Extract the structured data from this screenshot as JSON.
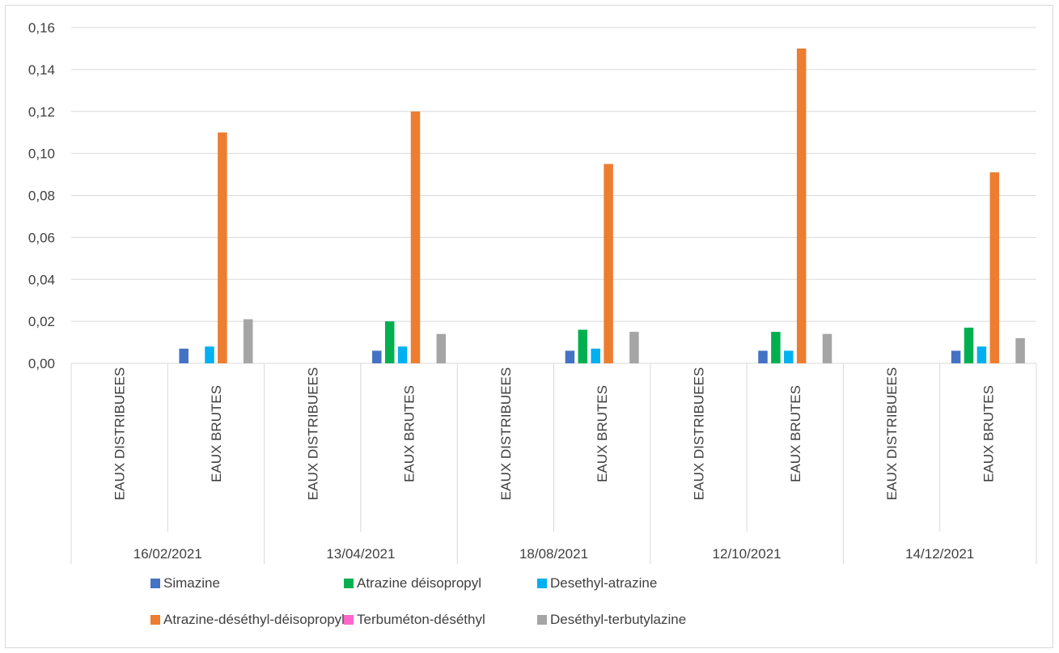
{
  "chart_data": {
    "type": "bar",
    "ylim": [
      0,
      0.16
    ],
    "y_ticks": [
      "0,00",
      "0,02",
      "0,04",
      "0,06",
      "0,08",
      "0,10",
      "0,12",
      "0,14",
      "0,16"
    ],
    "grid": true,
    "legend_position": "bottom",
    "groups": [
      {
        "date": "16/02/2021",
        "categories": [
          "EAUX DISTRIBUEES",
          "EAUX BRUTES"
        ]
      },
      {
        "date": "13/04/2021",
        "categories": [
          "EAUX DISTRIBUEES",
          "EAUX BRUTES"
        ]
      },
      {
        "date": "18/08/2021",
        "categories": [
          "EAUX DISTRIBUEES",
          "EAUX BRUTES"
        ]
      },
      {
        "date": "12/10/2021",
        "categories": [
          "EAUX DISTRIBUEES",
          "EAUX BRUTES"
        ]
      },
      {
        "date": "14/12/2021",
        "categories": [
          "EAUX DISTRIBUEES",
          "EAUX BRUTES"
        ]
      }
    ],
    "series": [
      {
        "name": "Simazine",
        "color": "#4472c4",
        "values": [
          null,
          0.007,
          null,
          0.006,
          null,
          0.006,
          null,
          0.006,
          null,
          0.006
        ]
      },
      {
        "name": "Atrazine déisopropyl",
        "color": "#00b050",
        "values": [
          null,
          null,
          null,
          0.02,
          null,
          0.016,
          null,
          0.015,
          null,
          0.017
        ]
      },
      {
        "name": "Desethyl-atrazine",
        "color": "#00b0f0",
        "values": [
          null,
          0.008,
          null,
          0.008,
          null,
          0.007,
          null,
          0.006,
          null,
          0.008
        ]
      },
      {
        "name": "Atrazine-déséthyl-déisopropyl",
        "color": "#ed7d31",
        "values": [
          null,
          0.11,
          null,
          0.12,
          null,
          0.095,
          null,
          0.15,
          null,
          0.091
        ]
      },
      {
        "name": "Terbuméton-déséthyl",
        "color": "#ff66cc",
        "values": [
          null,
          null,
          null,
          null,
          null,
          null,
          null,
          null,
          null,
          null
        ]
      },
      {
        "name": "Deséthyl-terbutylazine",
        "color": "#a5a5a5",
        "values": [
          null,
          0.021,
          null,
          0.014,
          null,
          0.015,
          null,
          0.014,
          null,
          0.012
        ]
      }
    ]
  }
}
